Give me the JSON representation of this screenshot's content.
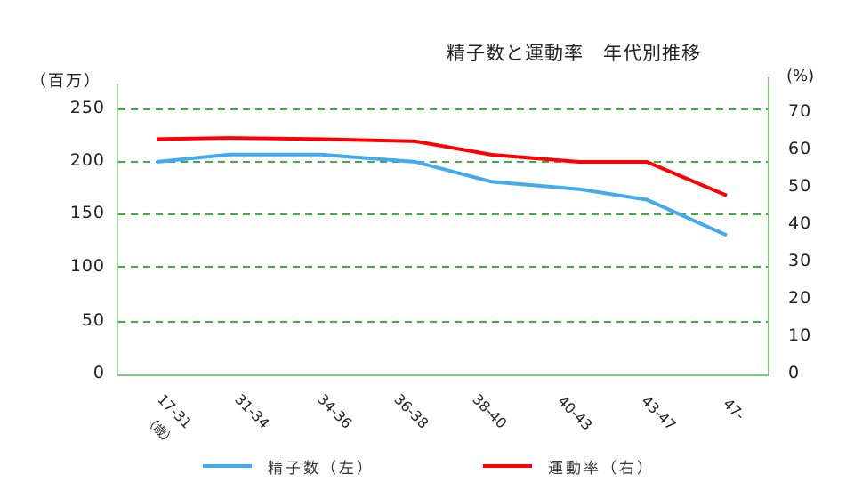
{
  "chart_data": {
    "type": "line",
    "title": "精子数と運動率　年代別推移",
    "xlabel": "（歳）",
    "ylabel_left": "（百万）",
    "ylabel_right": "(%)",
    "categories": [
      "17-31",
      "31-34",
      "34-36",
      "36-38",
      "38-40",
      "40-43",
      "43-47",
      "47-"
    ],
    "x_unit_label": "（歳）",
    "series": [
      {
        "name": "精子数（左）",
        "axis": "left",
        "color": "#44aaee",
        "values": [
          200,
          207,
          207,
          200,
          181,
          174,
          164,
          130
        ]
      },
      {
        "name": "運動率（右）",
        "axis": "right",
        "color": "#ff0000",
        "values": [
          63,
          63.3,
          63,
          62.4,
          58.8,
          56.9,
          56.9,
          47.9
        ]
      }
    ],
    "yaxis_left": {
      "ticks": [
        0,
        50,
        100,
        150,
        200,
        250
      ],
      "range": [
        0,
        250
      ]
    },
    "yaxis_right": {
      "ticks": [
        0,
        10,
        20,
        30,
        40,
        50,
        60,
        70
      ],
      "range": [
        0,
        70
      ]
    },
    "grid": true,
    "grid_style": "dashed",
    "grid_color": "#3cb043",
    "axis_color": "#4cbb50",
    "legend_position": "bottom"
  },
  "title": "精子数と運動率　年代別推移",
  "axis": {
    "left_unit": "（百万）",
    "right_unit": "(%)",
    "left_ticks": [
      "250",
      "200",
      "150",
      "100",
      "50",
      "0"
    ],
    "right_ticks": [
      "70",
      "60",
      "50",
      "40",
      "30",
      "20",
      "10",
      "0"
    ],
    "x_ticks": [
      "17-31",
      "31-34",
      "34-36",
      "36-38",
      "38-40",
      "40-43",
      "43-47",
      "47-"
    ],
    "x_sub": "（歳）"
  },
  "legend": {
    "items": [
      {
        "label": "精子数（左）",
        "color": "#44aaee"
      },
      {
        "label": "運動率（右）",
        "color": "#ff0000"
      }
    ]
  }
}
